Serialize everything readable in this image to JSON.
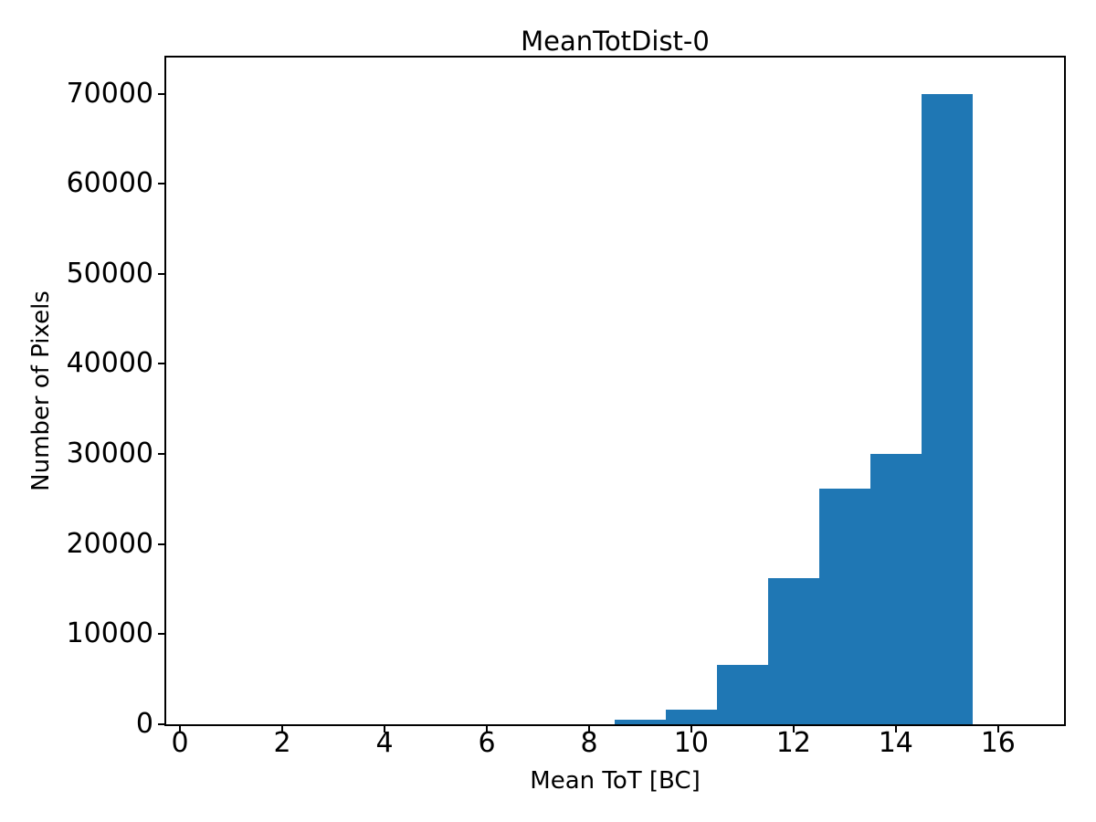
{
  "figure": {
    "background": "#ffffff",
    "text_color": "#000000"
  },
  "chart_data": {
    "type": "bar",
    "subtype": "histogram",
    "title": "MeanTotDist-0",
    "xlabel": "Mean ToT [BC]",
    "ylabel": "Number of Pixels",
    "bar_color": "#1f77b4",
    "bin_edges": [
      8.5,
      9.5,
      10.5,
      11.5,
      12.5,
      13.5,
      14.5,
      15.5
    ],
    "counts": [
      500,
      1600,
      6600,
      16200,
      26200,
      30000,
      70000
    ],
    "xlim": [
      -0.27,
      17.29
    ],
    "ylim": [
      0,
      74000
    ],
    "xticks": [
      0,
      2,
      4,
      6,
      8,
      10,
      12,
      14,
      16
    ],
    "xtick_labels": [
      "0",
      "2",
      "4",
      "6",
      "8",
      "10",
      "12",
      "14",
      "16"
    ],
    "yticks": [
      0,
      10000,
      20000,
      30000,
      40000,
      50000,
      60000,
      70000
    ],
    "ytick_labels": [
      "0",
      "10000",
      "20000",
      "30000",
      "40000",
      "50000",
      "60000",
      "70000"
    ],
    "grid": false,
    "legend": false
  }
}
